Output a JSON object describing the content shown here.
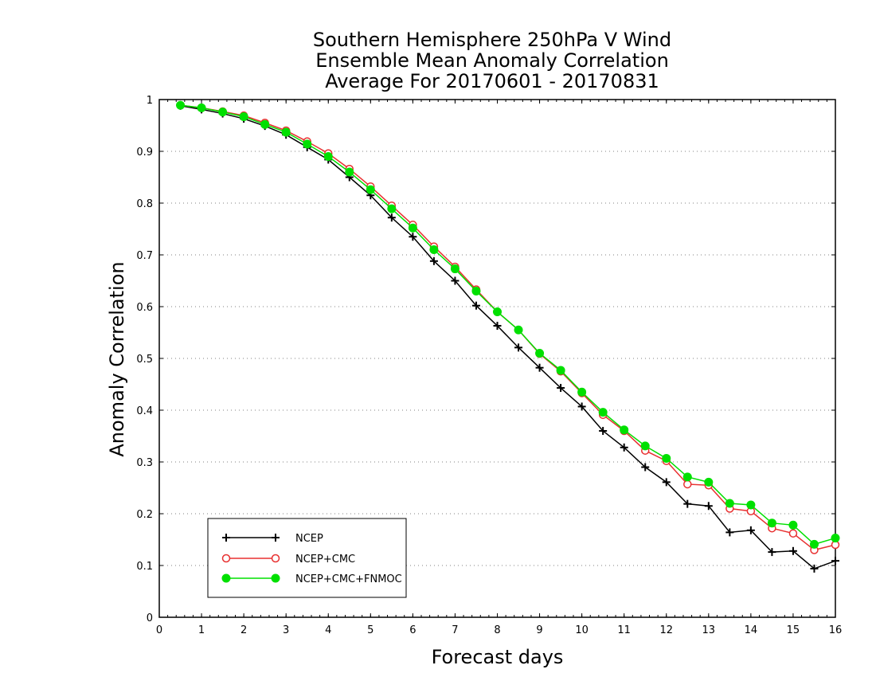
{
  "chart_data": {
    "type": "line",
    "title_lines": [
      "Southern Hemisphere 250hPa V Wind",
      "Ensemble Mean Anomaly Correlation",
      "Average For 20170601 - 20170831"
    ],
    "xlabel": "Forecast days",
    "ylabel": "Anomaly Correlation",
    "xlim": [
      0,
      16
    ],
    "ylim": [
      0,
      1
    ],
    "x_ticks": [
      "0",
      "1",
      "2",
      "3",
      "4",
      "5",
      "6",
      "7",
      "8",
      "9",
      "10",
      "11",
      "12",
      "13",
      "14",
      "15",
      "16"
    ],
    "y_ticks": [
      "0",
      "0.1",
      "0.2",
      "0.3",
      "0.4",
      "0.5",
      "0.6",
      "0.7",
      "0.8",
      "0.9",
      "1"
    ],
    "grid": "horizontal dotted",
    "legend_position": "bottom-left",
    "x": [
      0.5,
      1,
      1.5,
      2,
      2.5,
      3,
      3.5,
      4,
      4.5,
      5,
      5.5,
      6,
      6.5,
      7,
      7.5,
      8,
      8.5,
      9,
      9.5,
      10,
      10.5,
      11,
      11.5,
      12,
      12.5,
      13,
      13.5,
      14,
      14.5,
      15,
      15.5,
      16
    ],
    "series": [
      {
        "name": "NCEP",
        "color": "#000000",
        "marker": "plus",
        "values": [
          0.988,
          0.981,
          0.973,
          0.963,
          0.949,
          0.932,
          0.908,
          0.884,
          0.85,
          0.815,
          0.772,
          0.735,
          0.688,
          0.65,
          0.602,
          0.563,
          0.521,
          0.482,
          0.443,
          0.407,
          0.36,
          0.328,
          0.29,
          0.261,
          0.219,
          0.215,
          0.164,
          0.168,
          0.126,
          0.128,
          0.094,
          0.109
        ]
      },
      {
        "name": "NCEP+CMC",
        "color": "#e83030",
        "marker": "open-circle",
        "values": [
          0.989,
          0.984,
          0.977,
          0.969,
          0.955,
          0.94,
          0.919,
          0.896,
          0.866,
          0.832,
          0.795,
          0.758,
          0.716,
          0.677,
          0.633,
          0.59,
          0.555,
          0.509,
          0.475,
          0.433,
          0.391,
          0.36,
          0.322,
          0.302,
          0.257,
          0.255,
          0.21,
          0.205,
          0.172,
          0.162,
          0.13,
          0.14
        ]
      },
      {
        "name": "NCEP+CMC+FNMOC",
        "color": "#00e000",
        "marker": "filled-circle",
        "values": [
          0.989,
          0.984,
          0.976,
          0.967,
          0.952,
          0.937,
          0.914,
          0.89,
          0.86,
          0.826,
          0.789,
          0.752,
          0.71,
          0.673,
          0.63,
          0.59,
          0.555,
          0.51,
          0.477,
          0.435,
          0.396,
          0.362,
          0.331,
          0.307,
          0.271,
          0.261,
          0.22,
          0.217,
          0.182,
          0.178,
          0.141,
          0.153
        ]
      }
    ]
  }
}
